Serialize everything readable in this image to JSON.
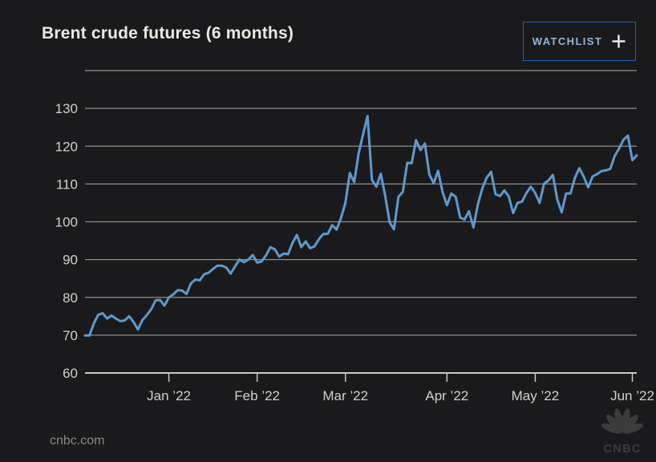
{
  "header": {
    "title": "Brent crude futures (6 months)",
    "watchlist_label": "WATCHLIST",
    "watchlist_icon": "plus-icon"
  },
  "chart_data": {
    "type": "line",
    "title": "Brent crude futures (6 months)",
    "xlabel": "",
    "ylabel": "",
    "unit": "USD per barrel",
    "ylim": [
      60,
      140
    ],
    "y_ticks": [
      60,
      70,
      80,
      90,
      100,
      110,
      120,
      130
    ],
    "grid": true,
    "legend": "none",
    "line_color": "#5f99cb",
    "x_ticks": [
      {
        "label": "Jan ’22",
        "index": 19
      },
      {
        "label": "Feb ’22",
        "index": 39
      },
      {
        "label": "Mar ’22",
        "index": 59
      },
      {
        "label": "Apr ’22",
        "index": 82
      },
      {
        "label": "May ’22",
        "index": 102
      },
      {
        "label": "Jun ’22",
        "index": 124
      }
    ],
    "values": [
      69.9,
      69.9,
      73.1,
      75.4,
      75.8,
      74.4,
      75.2,
      74.4,
      73.7,
      73.9,
      75.0,
      73.5,
      71.5,
      74.0,
      75.3,
      76.9,
      79.2,
      79.3,
      77.8,
      80.0,
      80.8,
      81.9,
      81.8,
      80.9,
      83.7,
      84.7,
      84.5,
      86.1,
      86.5,
      87.5,
      88.4,
      88.4,
      87.9,
      86.3,
      88.2,
      90.0,
      89.3,
      90.0,
      91.2,
      89.2,
      89.5,
      91.1,
      93.3,
      92.7,
      90.8,
      91.6,
      91.4,
      94.4,
      96.5,
      93.3,
      94.8,
      93.0,
      93.5,
      95.4,
      96.8,
      96.8,
      99.1,
      97.9,
      101.0,
      105.0,
      112.9,
      110.5,
      118.1,
      123.2,
      128.0,
      111.1,
      109.3,
      112.7,
      106.9,
      99.9,
      98.0,
      106.6,
      107.9,
      115.6,
      115.5,
      121.6,
      119.0,
      120.7,
      112.5,
      110.2,
      113.5,
      107.9,
      104.4,
      107.5,
      106.6,
      101.1,
      100.6,
      102.8,
      98.5,
      104.6,
      108.8,
      111.7,
      113.2,
      107.3,
      106.8,
      108.3,
      106.7,
      102.3,
      105.0,
      105.3,
      107.6,
      109.3,
      107.6,
      105.0,
      110.1,
      110.9,
      112.4,
      105.9,
      102.5,
      107.5,
      107.5,
      111.6,
      114.2,
      111.9,
      109.1,
      112.0,
      112.6,
      113.4,
      113.6,
      114.0,
      117.4,
      119.4,
      121.7,
      122.8,
      116.3,
      117.6
    ]
  },
  "footer": {
    "source": "cnbc.com",
    "logo_text": "CNBC",
    "logo_icon": "cnbc-peacock-icon"
  },
  "colors": {
    "background": "#1a1a1c",
    "line": "#5f99cb",
    "grid": "#8f8d8a",
    "axis": "#cbc9c5",
    "tick_label": "#d2cfca",
    "title": "#ece9e5",
    "watchlist_border": "#2263b0",
    "watchlist_text": "#8fb6df",
    "source_text": "#8a8782",
    "logo": "#3b3b3b"
  }
}
